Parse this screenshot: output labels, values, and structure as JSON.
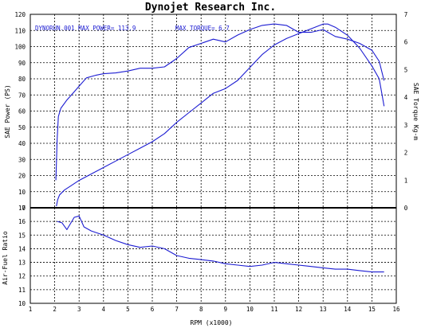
{
  "chart_data": [
    {
      "type": "line",
      "title": "Dynojet  Research  Inc.",
      "annotations": [
        "DYNORUN.001  MAX POWER= 113.9",
        "MAX TORQUE= 6.7"
      ],
      "xlabel": "RPM (x1000)",
      "ylabel": "SAE Power (PS)",
      "y2label": "SAE Torque Kg-m",
      "xlim": [
        1,
        16
      ],
      "ylim": [
        0,
        120
      ],
      "y2lim": [
        0,
        7
      ],
      "xticks": [
        "1",
        "2",
        "3",
        "4",
        "5",
        "6",
        "7",
        "8",
        "9",
        "10",
        "11",
        "12",
        "13",
        "14",
        "15",
        "16"
      ],
      "yticks": [
        "0",
        "10",
        "20",
        "30",
        "40",
        "50",
        "60",
        "70",
        "80",
        "90",
        "100",
        "110",
        "120"
      ],
      "y2ticks": [
        "0",
        "1",
        "2",
        "3",
        "4",
        "5",
        "6",
        "7"
      ],
      "grid": true,
      "series": [
        {
          "axis": "left",
          "color": "#1c1cd2",
          "x": [
            2.07,
            2.12,
            2.2,
            2.4,
            2.7,
            3.0,
            3.5,
            4.0,
            4.5,
            5.0,
            5.5,
            6.0,
            6.5,
            7.0,
            7.5,
            8.0,
            8.5,
            9.0,
            9.5,
            10.0,
            10.5,
            11.0,
            11.5,
            12.0,
            12.5,
            13.0,
            13.2,
            13.5,
            14.0,
            14.5,
            15.0,
            15.3,
            15.5
          ],
          "y": [
            1,
            5,
            8,
            11,
            14,
            17,
            21,
            25,
            29,
            33,
            37,
            41,
            46,
            53,
            59,
            65,
            71,
            74,
            79,
            87,
            95,
            101,
            105,
            108,
            111,
            114,
            114,
            112,
            107,
            99,
            88,
            80,
            63
          ]
        },
        {
          "axis": "right",
          "color": "#1c1cd2",
          "x": [
            2.05,
            2.1,
            2.15,
            2.25,
            2.5,
            2.8,
            3.0,
            3.3,
            3.7,
            4.0,
            4.5,
            5.0,
            5.5,
            6.0,
            6.5,
            7.0,
            7.5,
            8.0,
            8.5,
            9.0,
            9.5,
            10.0,
            10.5,
            11.0,
            11.5,
            12.0,
            12.5,
            13.0,
            13.5,
            14.0,
            14.5,
            15.0,
            15.3,
            15.5
          ],
          "y": [
            1.0,
            2.5,
            3.3,
            3.6,
            3.9,
            4.2,
            4.4,
            4.7,
            4.8,
            4.85,
            4.88,
            4.95,
            5.05,
            5.05,
            5.1,
            5.4,
            5.8,
            5.95,
            6.1,
            6.0,
            6.25,
            6.45,
            6.6,
            6.65,
            6.6,
            6.35,
            6.35,
            6.45,
            6.2,
            6.1,
            5.95,
            5.7,
            5.3,
            4.6
          ]
        }
      ]
    },
    {
      "type": "line",
      "xlabel": "RPM (x1000)",
      "ylabel": "Air-Fuel Ratio",
      "xlim": [
        1,
        16
      ],
      "ylim": [
        10,
        17
      ],
      "xticks": [
        "1",
        "2",
        "3",
        "4",
        "5",
        "6",
        "7",
        "8",
        "9",
        "10",
        "11",
        "12",
        "13",
        "14",
        "15",
        "16"
      ],
      "yticks": [
        "10",
        "11",
        "12",
        "13",
        "14",
        "15",
        "16",
        "17"
      ],
      "grid": true,
      "series": [
        {
          "color": "#1c1cd2",
          "x": [
            2.1,
            2.3,
            2.5,
            2.8,
            3.0,
            3.2,
            3.5,
            4.0,
            4.5,
            5.0,
            5.5,
            6.0,
            6.5,
            7.0,
            7.5,
            8.0,
            8.5,
            9.0,
            9.5,
            10.0,
            10.5,
            11.0,
            11.5,
            12.0,
            12.5,
            13.0,
            13.5,
            14.0,
            14.5,
            15.0,
            15.5
          ],
          "y": [
            16.0,
            15.9,
            15.4,
            16.3,
            16.4,
            15.6,
            15.3,
            15.0,
            14.6,
            14.3,
            14.1,
            14.2,
            14.0,
            13.5,
            13.3,
            13.2,
            13.1,
            12.9,
            12.8,
            12.7,
            12.8,
            13.0,
            12.9,
            12.8,
            12.7,
            12.6,
            12.5,
            12.5,
            12.4,
            12.3,
            12.3
          ]
        }
      ]
    }
  ]
}
